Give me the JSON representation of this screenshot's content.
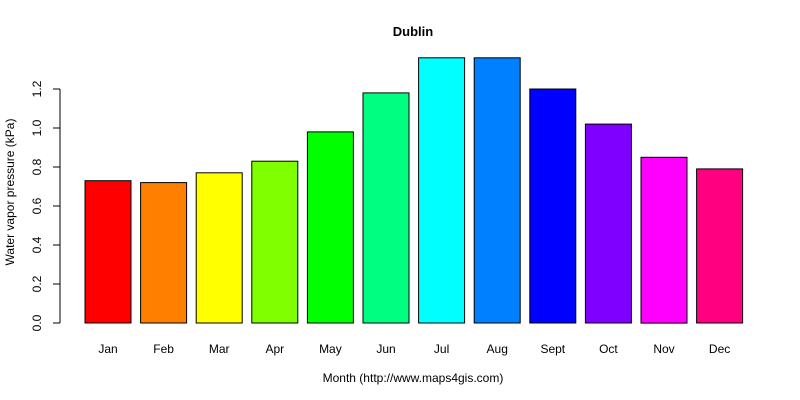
{
  "chart_data": {
    "type": "bar",
    "title": "Dublin",
    "xlabel": "Month (http://www.maps4gis.com)",
    "ylabel": "Water vapor pressure (kPa)",
    "ylim": [
      0,
      1.35
    ],
    "yticks": [
      "0.0",
      "0.2",
      "0.4",
      "0.6",
      "0.8",
      "1.0",
      "1.2"
    ],
    "ytick_values": [
      0,
      0.2,
      0.4,
      0.6,
      0.8,
      1.0,
      1.2
    ],
    "grid": false,
    "legend": "none",
    "categories": [
      "Jan",
      "Feb",
      "Mar",
      "Apr",
      "May",
      "Jun",
      "Jul",
      "Aug",
      "Sept",
      "Oct",
      "Nov",
      "Dec"
    ],
    "values": [
      0.73,
      0.72,
      0.77,
      0.83,
      0.98,
      1.18,
      1.36,
      1.36,
      1.2,
      1.02,
      0.85,
      0.79
    ],
    "colors": [
      "#FF0000",
      "#FF8000",
      "#FFFF00",
      "#80FF00",
      "#00FF00",
      "#00FF80",
      "#00FFFF",
      "#0080FF",
      "#0000FF",
      "#8000FF",
      "#FF00FF",
      "#FF0080"
    ]
  }
}
